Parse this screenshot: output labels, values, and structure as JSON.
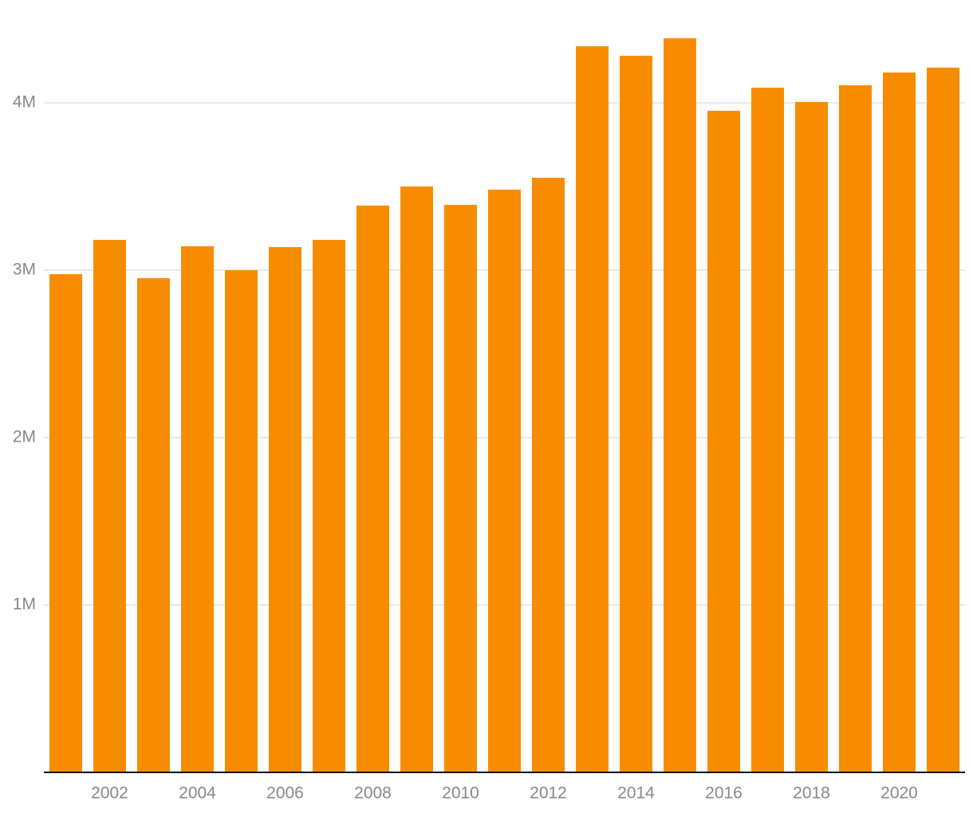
{
  "chart_data": {
    "type": "bar",
    "categories": [
      null,
      "2002",
      null,
      "2004",
      null,
      "2006",
      null,
      "2008",
      null,
      "2010",
      null,
      "2012",
      null,
      "2014",
      null,
      "2016",
      null,
      "2018",
      null,
      "2020",
      null
    ],
    "values": [
      2976000,
      3181000,
      2952000,
      3143000,
      3000000,
      3138000,
      3181000,
      3386000,
      3500000,
      3390000,
      3481000,
      3552000,
      4338000,
      4281000,
      4386000,
      3952000,
      4090000,
      4005000,
      4105000,
      4181000,
      4210000
    ],
    "color": "#f88c00",
    "ylim": [
      0,
      4614000
    ],
    "yticks": [
      {
        "value": 1000000,
        "label": "1M"
      },
      {
        "value": 2000000,
        "label": "2M"
      },
      {
        "value": 3000000,
        "label": "3M"
      },
      {
        "value": 4000000,
        "label": "4M"
      }
    ],
    "grid": true
  }
}
